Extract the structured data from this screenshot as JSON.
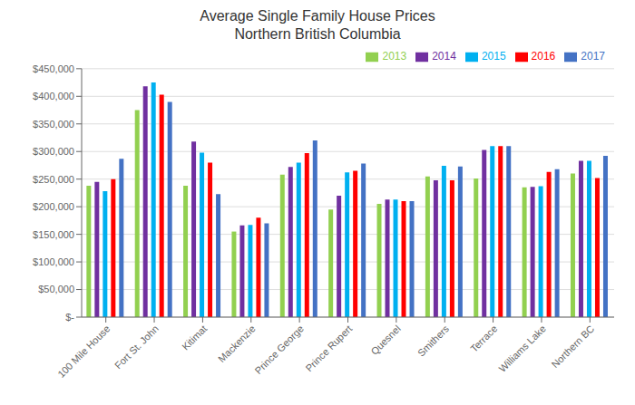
{
  "chart_data": {
    "type": "bar",
    "title": "Average Single Family House Prices\nNorthern British Columbia",
    "categories": [
      "100 Mile House",
      "Fort St. John",
      "Kitimat",
      "Mackenzie",
      "Prince George",
      "Prince Rupert",
      "Quesnel",
      "Smithers",
      "Terrace",
      "Williams Lake",
      "Northern BC"
    ],
    "series": [
      {
        "name": "2013",
        "color": "#92d050",
        "values": [
          238000,
          375000,
          238000,
          155000,
          258000,
          195000,
          205000,
          255000,
          251000,
          235000,
          260000
        ]
      },
      {
        "name": "2014",
        "color": "#7030a0",
        "values": [
          245000,
          418000,
          318000,
          166000,
          272000,
          220000,
          213000,
          248000,
          303000,
          236000,
          283000
        ]
      },
      {
        "name": "2015",
        "color": "#00b0f0",
        "values": [
          228000,
          425000,
          298000,
          167000,
          280000,
          262000,
          213000,
          274000,
          310000,
          237000,
          283000
        ]
      },
      {
        "name": "2016",
        "color": "#ff0000",
        "values": [
          250000,
          403000,
          280000,
          180000,
          297000,
          265000,
          210000,
          248000,
          310000,
          263000,
          252000
        ]
      },
      {
        "name": "2017",
        "color": "#4472c4",
        "values": [
          287000,
          390000,
          223000,
          170000,
          320000,
          278000,
          210000,
          273000,
          310000,
          268000,
          292000
        ]
      }
    ],
    "ylim": [
      0,
      450000
    ],
    "yticks": [
      {
        "value": 0,
        "label": "$-"
      },
      {
        "value": 50000,
        "label": "$50,000"
      },
      {
        "value": 100000,
        "label": "$100,000"
      },
      {
        "value": 150000,
        "label": "$150,000"
      },
      {
        "value": 200000,
        "label": "$200,000"
      },
      {
        "value": 250000,
        "label": "$250,000"
      },
      {
        "value": 300000,
        "label": "$300,000"
      },
      {
        "value": 350000,
        "label": "$350,000"
      },
      {
        "value": 400000,
        "label": "$400,000"
      },
      {
        "value": 450000,
        "label": "$450,000"
      }
    ],
    "grid": true,
    "legend": "upper right"
  }
}
